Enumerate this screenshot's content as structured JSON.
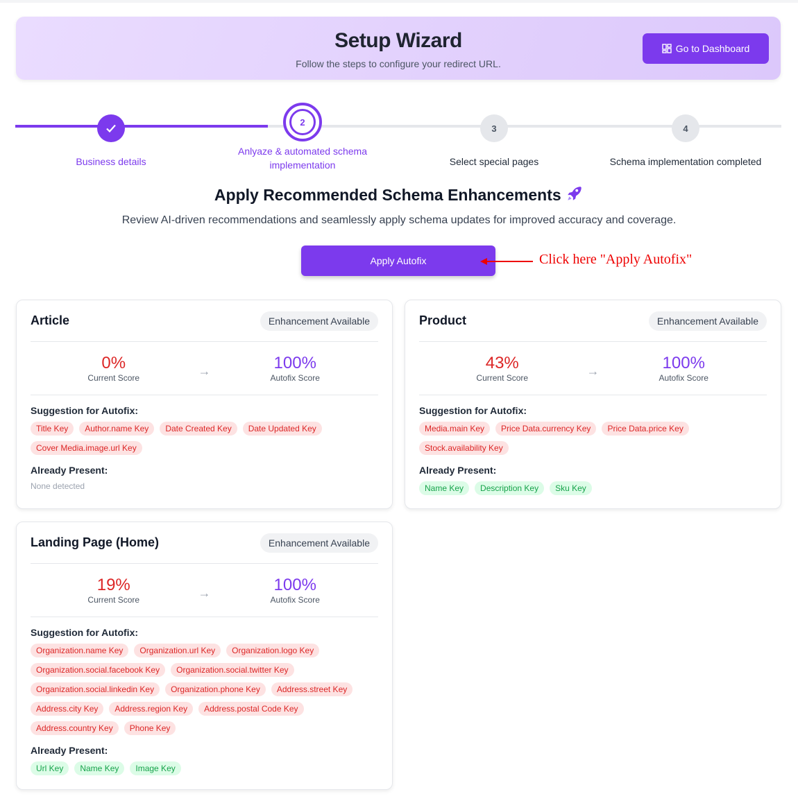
{
  "header": {
    "title": "Setup Wizard",
    "subtitle": "Follow the steps to configure your redirect URL.",
    "dashboard_label": "Go to Dashboard"
  },
  "steps": [
    {
      "number": "1",
      "label": "Business details",
      "state": "completed"
    },
    {
      "number": "2",
      "label": "Anlyaze & automated schema implementation",
      "state": "active"
    },
    {
      "number": "3",
      "label": "Select special pages",
      "state": "pending"
    },
    {
      "number": "4",
      "label": "Schema implementation completed",
      "state": "pending"
    }
  ],
  "main": {
    "title": "Apply Recommended Schema Enhancements",
    "title_icon": "rocket-icon",
    "subtitle": "Review AI-driven recommendations and seamlessly apply schema updates for improved accuracy and coverage.",
    "apply_label": "Apply Autofix",
    "annotation": "Click here \"Apply Autofix\""
  },
  "colors": {
    "accent": "#7c3aed",
    "current": "#dc2626",
    "annotation": "#ee0000"
  },
  "cards": [
    {
      "name": "Article",
      "badge": "Enhancement Available",
      "current": "0%",
      "current_label": "Current Score",
      "autofix": "100%",
      "autofix_label": "Autofix Score",
      "suggest_label": "Suggestion for Autofix:",
      "suggestions": [
        "Title Key",
        "Author.name Key",
        "Date Created Key",
        "Date Updated Key",
        "Cover Media.image.url Key"
      ],
      "present_label": "Already Present:",
      "present": [],
      "none_text": "None detected"
    },
    {
      "name": "Product",
      "badge": "Enhancement Available",
      "current": "43%",
      "current_label": "Current Score",
      "autofix": "100%",
      "autofix_label": "Autofix Score",
      "suggest_label": "Suggestion for Autofix:",
      "suggestions": [
        "Media.main Key",
        "Price Data.currency Key",
        "Price Data.price Key",
        "Stock.availability Key"
      ],
      "present_label": "Already Present:",
      "present": [
        "Name Key",
        "Description Key",
        "Sku Key"
      ]
    },
    {
      "name": "Landing Page (Home)",
      "badge": "Enhancement Available",
      "current": "19%",
      "current_label": "Current Score",
      "autofix": "100%",
      "autofix_label": "Autofix Score",
      "suggest_label": "Suggestion for Autofix:",
      "suggestions": [
        "Organization.name Key",
        "Organization.url Key",
        "Organization.logo Key",
        "Organization.social.facebook Key",
        "Organization.social.twitter Key",
        "Organization.social.linkedin Key",
        "Organization.phone Key",
        "Address.street Key",
        "Address.city Key",
        "Address.region Key",
        "Address.postal Code Key",
        "Address.country Key",
        "Phone Key"
      ],
      "present_label": "Already Present:",
      "present": [
        "Url Key",
        "Name Key",
        "Image Key"
      ]
    }
  ]
}
